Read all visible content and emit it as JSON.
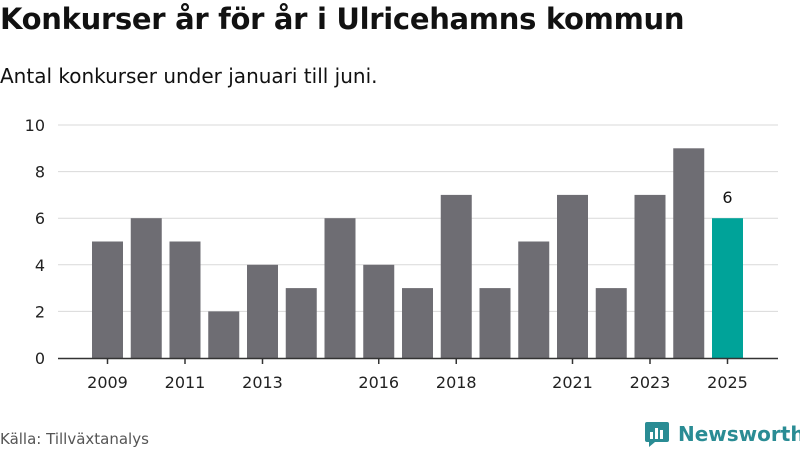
{
  "header": {
    "title": "Konkurser år för år i Ulricehamns kommun",
    "subtitle": "Antal konkurser under januari till juni."
  },
  "footer": {
    "source": "Källa: Tillväxtanalys",
    "brand": "Newsworthy",
    "brand_icon": "newsworthy-logo-icon"
  },
  "colors": {
    "bar": "#6e6d73",
    "highlight": "#00a399",
    "brand": "#2a8c94",
    "grid": "#d9d9d9",
    "axis": "#333333"
  },
  "chart_data": {
    "type": "bar",
    "categories": [
      "2009",
      "2010",
      "2011",
      "2012",
      "2013",
      "2014",
      "2015",
      "2016",
      "2017",
      "2018",
      "2019",
      "2020",
      "2021",
      "2022",
      "2023",
      "2024",
      "2025"
    ],
    "values": [
      5,
      6,
      5,
      2,
      4,
      3,
      6,
      4,
      3,
      7,
      3,
      5,
      7,
      3,
      7,
      9,
      6
    ],
    "x_tick_labels": [
      "2009",
      "2011",
      "2013",
      "2016",
      "2018",
      "2021",
      "2023",
      "2025"
    ],
    "y_ticks": [
      "0",
      "2",
      "4",
      "6",
      "8",
      "10"
    ],
    "ylim": [
      0,
      10
    ],
    "grid": true,
    "highlight": {
      "category": "2025",
      "label": "6"
    },
    "xlabel": "",
    "ylabel": ""
  }
}
